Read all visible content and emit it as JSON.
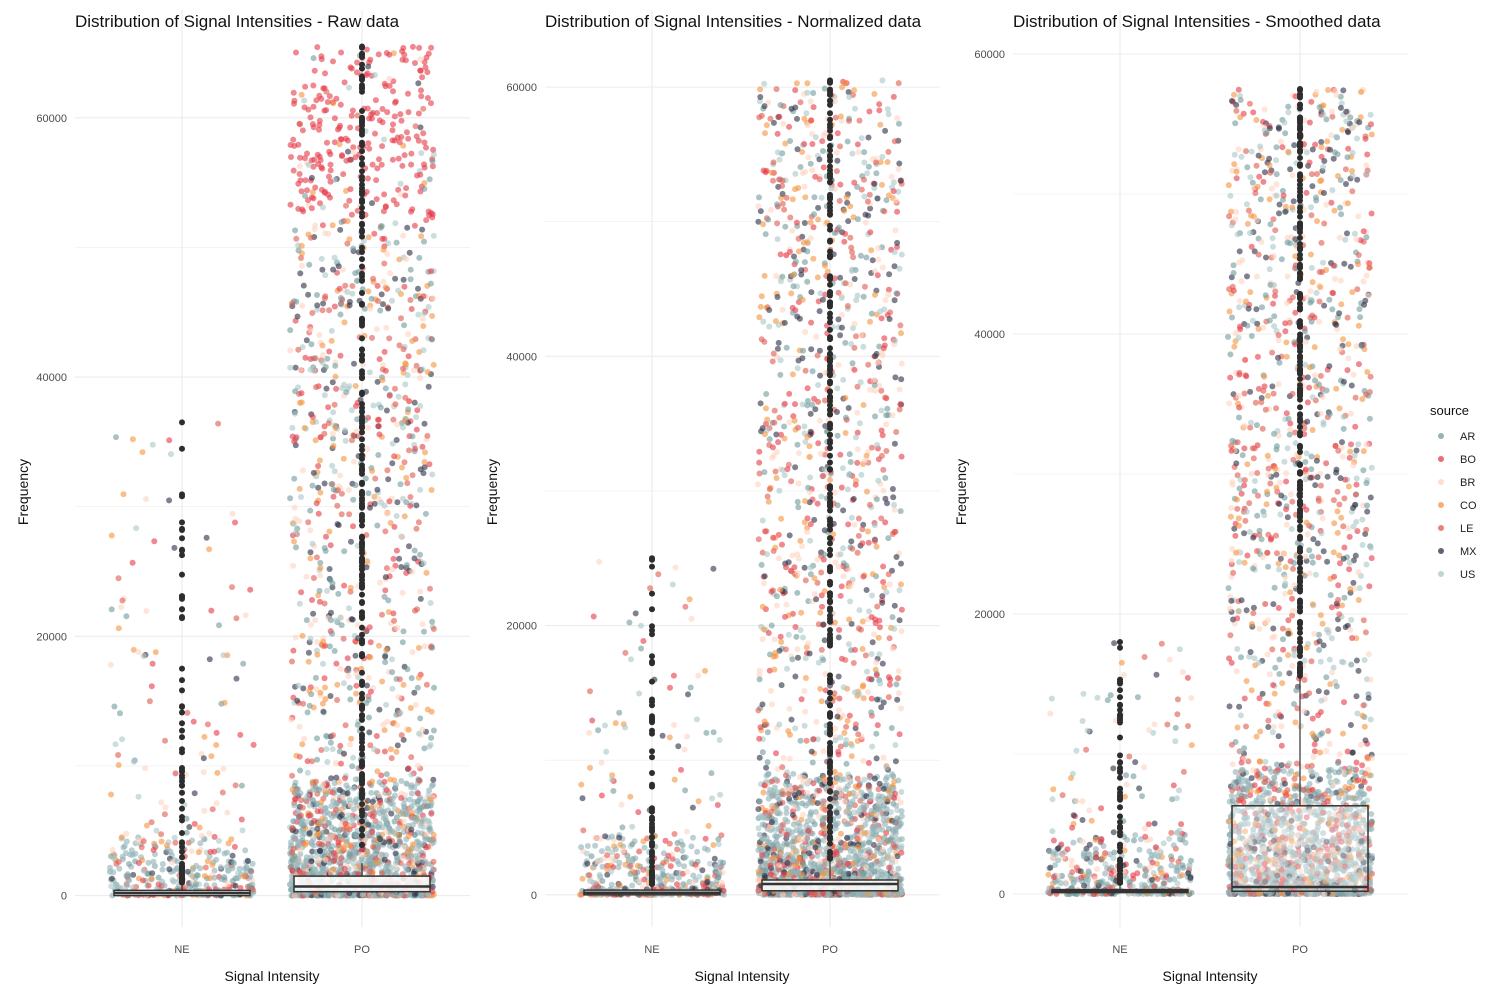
{
  "legend": {
    "title": "source",
    "position": "right",
    "items": [
      {
        "name": "AR",
        "color": "#6f9a9b"
      },
      {
        "name": "BO",
        "color": "#e63946"
      },
      {
        "name": "BR",
        "color": "#ffd3c0"
      },
      {
        "name": "CO",
        "color": "#f4953f"
      },
      {
        "name": "LE",
        "color": "#e05a4f"
      },
      {
        "name": "MX",
        "color": "#2b2d42"
      },
      {
        "name": "US",
        "color": "#a8c7c7"
      }
    ]
  },
  "chart_data": [
    {
      "type": "scatter",
      "subtype": "jittered points with boxplot",
      "title": "Distribution of Signal Intensities - Raw data",
      "xlabel": "Signal Intensity",
      "ylabel": "Frequency",
      "categories": [
        "NE",
        "PO"
      ],
      "ylim": [
        -1500,
        66000
      ],
      "yticks": [
        0,
        20000,
        40000,
        60000
      ],
      "grid": true,
      "summary": [
        {
          "category": "NE",
          "q1": 0,
          "median": 200,
          "q3": 400,
          "upper_whisker": 1000,
          "max_outlier": 36500,
          "point_max": 36500
        },
        {
          "category": "PO",
          "q1": 300,
          "median": 700,
          "q3": 1500,
          "upper_whisker": 2500,
          "max_outlier": 65500,
          "point_max": 65500
        }
      ]
    },
    {
      "type": "scatter",
      "subtype": "jittered points with boxplot",
      "title": "Distribution of Signal Intensities - Normalized data",
      "xlabel": "Signal Intensity",
      "ylabel": "Frequency",
      "categories": [
        "NE",
        "PO"
      ],
      "ylim": [
        -1500,
        63500
      ],
      "yticks": [
        0,
        20000,
        40000,
        60000
      ],
      "grid": true,
      "summary": [
        {
          "category": "NE",
          "q1": 0,
          "median": 150,
          "q3": 350,
          "upper_whisker": 800,
          "max_outlier": 25000,
          "point_max": 25000
        },
        {
          "category": "PO",
          "q1": 300,
          "median": 800,
          "q3": 1100,
          "upper_whisker": 2500,
          "max_outlier": 60500,
          "point_max": 60500
        }
      ]
    },
    {
      "type": "scatter",
      "subtype": "jittered points with boxplot",
      "title": "Distribution of Signal Intensities - Smoothed data",
      "xlabel": "Signal Intensity",
      "ylabel": "Frequency",
      "categories": [
        "NE",
        "PO"
      ],
      "ylim": [
        -1500,
        61000
      ],
      "yticks": [
        0,
        20000,
        40000,
        60000
      ],
      "grid": true,
      "summary": [
        {
          "category": "NE",
          "q1": 100,
          "median": 200,
          "q3": 300,
          "upper_whisker": 800,
          "max_outlier": 18000,
          "point_max": 18000
        },
        {
          "category": "PO",
          "q1": 200,
          "median": 500,
          "q3": 6300,
          "upper_whisker": 15500,
          "max_outlier": 57500,
          "point_max": 57500
        }
      ]
    }
  ]
}
